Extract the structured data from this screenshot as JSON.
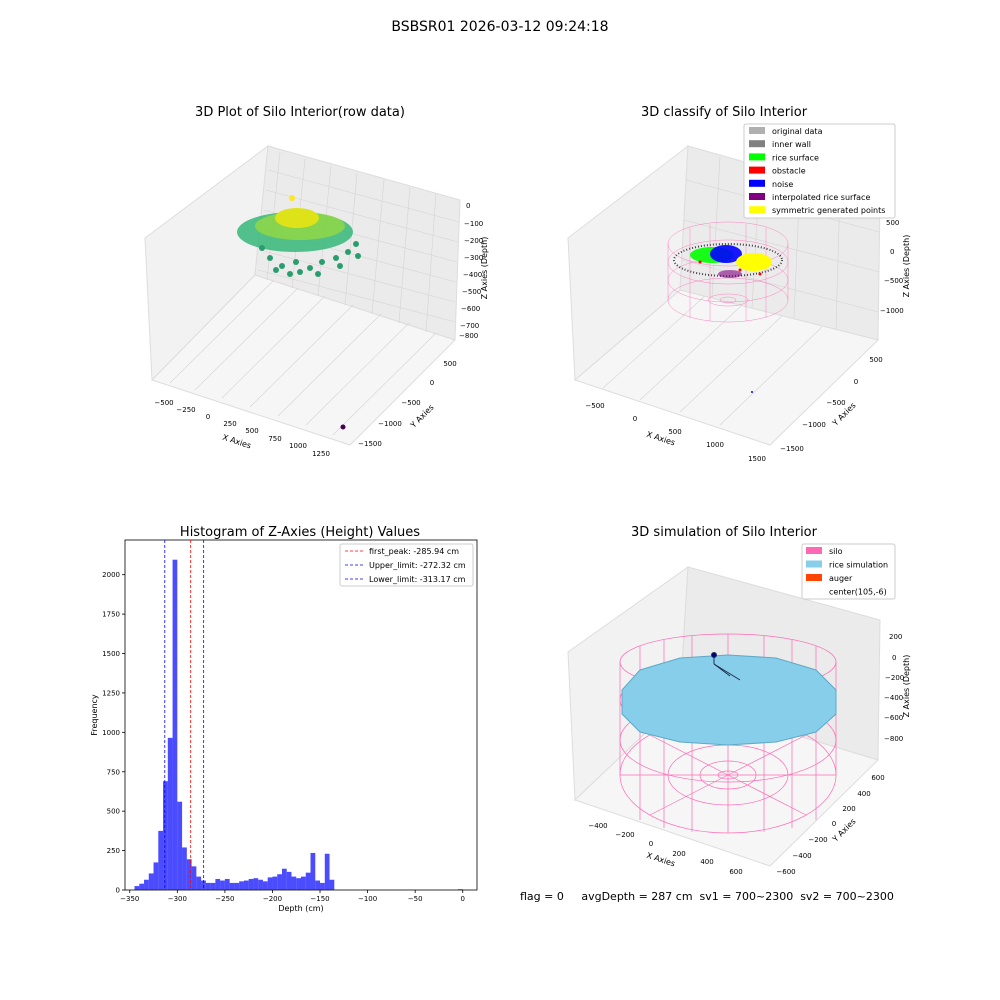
{
  "figure": {
    "suptitle": "BSBSR01 2026-03-12 09:24:18",
    "status_line": "flag = 0     avgDepth = 287 cm  sv1 = 700~2300  sv2 = 700~2300"
  },
  "colors": {
    "silo": "#ff69b4",
    "rice_simulation": "#87ceeb",
    "auger": "#ff4500",
    "hist_bar": "#0000ff",
    "first_peak": "#ff0000",
    "limit": "#0000ff"
  },
  "chart_data": [
    {
      "type": "scatter",
      "projection": "3d",
      "title": "3D Plot of Silo Interior(row data)",
      "xlabel": "X Axies",
      "ylabel": "Y Axies",
      "zlabel": "Z Axies (Depth)",
      "x_ticks": [
        "−500",
        "−250",
        "0",
        "250",
        "500",
        "750",
        "1000",
        "1250"
      ],
      "y_ticks": [
        "500",
        "0",
        "−500",
        "−1000",
        "−1500"
      ],
      "z_ticks": [
        "0",
        "−100",
        "−200",
        "−300",
        "−400",
        "−500",
        "−600",
        "−700",
        "−800"
      ],
      "xlim": [
        -600,
        1300
      ],
      "ylim": [
        -1700,
        600
      ],
      "zlim": [
        -820,
        0
      ],
      "grid": true,
      "colormap": "viridis",
      "outlier_point": {
        "x": 1250,
        "y": -1600,
        "z": -820
      }
    },
    {
      "type": "scatter",
      "projection": "3d",
      "title": "3D classify of Silo Interior",
      "zlabel": "Z Axies (Depth)",
      "xlabel": "X Axies",
      "ylabel": "Y Axies",
      "x_ticks": [
        "−500",
        "0",
        "500",
        "1000",
        "1500"
      ],
      "y_ticks": [
        "500",
        "0",
        "−500",
        "−1000",
        "−1500"
      ],
      "z_ticks": [
        "500",
        "0",
        "−500",
        "−1000"
      ],
      "grid": true,
      "legend_position": "top-right",
      "legend": [
        {
          "label": "original data",
          "color": "#b0b0b0"
        },
        {
          "label": "inner wall",
          "color": "#808080"
        },
        {
          "label": "rice surface",
          "color": "#00ff00"
        },
        {
          "label": "obstacle",
          "color": "#ff0000"
        },
        {
          "label": "noise",
          "color": "#0000ff"
        },
        {
          "label": "interpolated rice surface",
          "color": "#800080"
        },
        {
          "label": "symmetric generated points",
          "color": "#ffff00"
        }
      ]
    },
    {
      "type": "bar",
      "title": "Histogram of Z-Axies (Height) Values",
      "xlabel": "Depth (cm)",
      "ylabel": "Frequency",
      "xlim": [
        -355,
        15
      ],
      "ylim": [
        0,
        2220
      ],
      "x_ticks": [
        -350,
        -300,
        -250,
        -200,
        -150,
        -100,
        -50,
        0
      ],
      "y_ticks": [
        0,
        250,
        500,
        750,
        1000,
        1250,
        1500,
        1750,
        2000
      ],
      "bin_width": 5,
      "bins": [
        {
          "x": -350,
          "count": 0
        },
        {
          "x": -345,
          "count": 25
        },
        {
          "x": -340,
          "count": 40
        },
        {
          "x": -335,
          "count": 65
        },
        {
          "x": -330,
          "count": 105
        },
        {
          "x": -325,
          "count": 175
        },
        {
          "x": -320,
          "count": 375
        },
        {
          "x": -315,
          "count": 690
        },
        {
          "x": -310,
          "count": 965
        },
        {
          "x": -305,
          "count": 2095
        },
        {
          "x": -300,
          "count": 560
        },
        {
          "x": -295,
          "count": 270
        },
        {
          "x": -290,
          "count": 195
        },
        {
          "x": -285,
          "count": 150
        },
        {
          "x": -280,
          "count": 85
        },
        {
          "x": -275,
          "count": 60
        },
        {
          "x": -270,
          "count": 45
        },
        {
          "x": -265,
          "count": 45
        },
        {
          "x": -260,
          "count": 70
        },
        {
          "x": -255,
          "count": 60
        },
        {
          "x": -250,
          "count": 70
        },
        {
          "x": -245,
          "count": 45
        },
        {
          "x": -240,
          "count": 45
        },
        {
          "x": -235,
          "count": 55
        },
        {
          "x": -230,
          "count": 60
        },
        {
          "x": -225,
          "count": 70
        },
        {
          "x": -220,
          "count": 75
        },
        {
          "x": -215,
          "count": 65
        },
        {
          "x": -210,
          "count": 55
        },
        {
          "x": -205,
          "count": 80
        },
        {
          "x": -200,
          "count": 85
        },
        {
          "x": -195,
          "count": 100
        },
        {
          "x": -190,
          "count": 135
        },
        {
          "x": -185,
          "count": 115
        },
        {
          "x": -180,
          "count": 85
        },
        {
          "x": -175,
          "count": 75
        },
        {
          "x": -170,
          "count": 85
        },
        {
          "x": -165,
          "count": 110
        },
        {
          "x": -160,
          "count": 235
        },
        {
          "x": -155,
          "count": 60
        },
        {
          "x": -150,
          "count": 45
        },
        {
          "x": -145,
          "count": 230
        },
        {
          "x": -140,
          "count": 65
        },
        {
          "x": -135,
          "count": 0
        },
        {
          "x": -130,
          "count": 0
        },
        {
          "x": -5,
          "count": 5
        }
      ],
      "lines": [
        {
          "label": "first_peak: -285.94 cm",
          "x": -285.94,
          "color": "#ff0000"
        },
        {
          "label": "Upper_limit: -272.32 cm",
          "x": -272.32,
          "color": "#0000ff"
        },
        {
          "label": "Lower_limit: -313.17 cm",
          "x": -313.17,
          "color": "#0000ff"
        }
      ],
      "legend_position": "top-right"
    },
    {
      "type": "scatter",
      "projection": "3d",
      "title": "3D simulation of Silo Interior",
      "xlabel": "X Axies",
      "ylabel": "Y Axies",
      "zlabel": "Z Axies (Depth)",
      "x_ticks": [
        "−400",
        "−200",
        "0",
        "200",
        "400",
        "600"
      ],
      "y_ticks": [
        "600",
        "400",
        "200",
        "0",
        "−200",
        "−400",
        "−600"
      ],
      "z_ticks": [
        "200",
        "0",
        "−200",
        "−400",
        "−600",
        "−800"
      ],
      "grid": true,
      "legend_position": "top-right",
      "legend": [
        {
          "label": "silo",
          "color": "#ff69b4"
        },
        {
          "label": "rice simulation",
          "color": "#87ceeb"
        },
        {
          "label": "auger",
          "color": "#ff4500"
        },
        {
          "label": "center(105,-6)",
          "color": ""
        }
      ]
    }
  ]
}
